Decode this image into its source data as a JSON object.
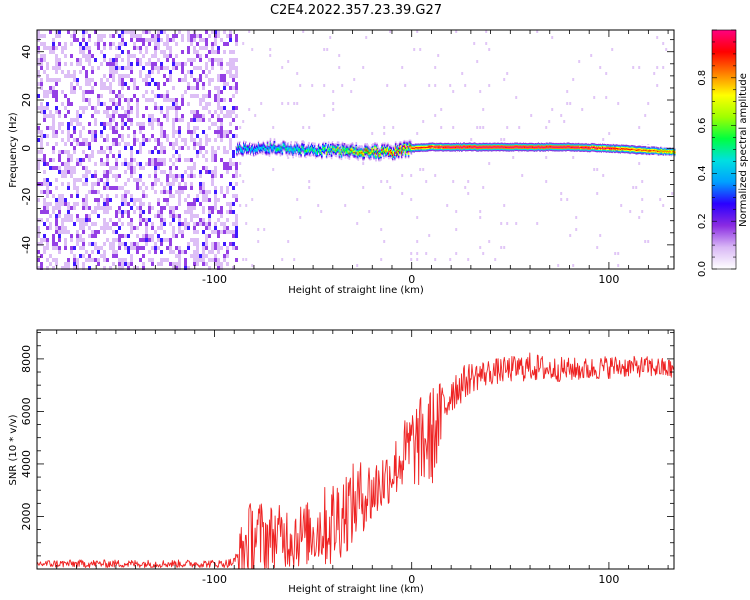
{
  "title": "C2E4.2022.357.23.39.G27",
  "chart_data": [
    {
      "type": "heatmap",
      "xlabel": "Height of straight line (km)",
      "ylabel": "Frequency (Hz)",
      "xlim": [
        -190,
        133
      ],
      "ylim": [
        -50,
        49
      ],
      "xticks": [
        "-100",
        "0",
        "100"
      ],
      "yticks": [
        "40",
        "20",
        "0",
        "-20",
        "-40"
      ],
      "colorbar": {
        "label": "Normalized spectral amplitude",
        "range": [
          0.0,
          1.0
        ],
        "ticks": [
          "0.0",
          "0.2",
          "0.4",
          "0.6",
          "0.8"
        ],
        "colormap": [
          "#ffffff",
          "#d9b8f5",
          "#8a2be2",
          "#2a00ff",
          "#00a0ff",
          "#00e0e0",
          "#00ff40",
          "#a0ff00",
          "#ffff00",
          "#ff8000",
          "#ff0000",
          "#ff0080"
        ]
      },
      "noise_region_x": [
        -190,
        -89
      ],
      "signal_track": {
        "x": [
          -89,
          -80,
          -70,
          -60,
          -50,
          -40,
          -30,
          -20,
          -10,
          0,
          10,
          20,
          40,
          60,
          80,
          100,
          120,
          133
        ],
        "freq_hz": [
          0.0,
          -0.5,
          0.5,
          -0.5,
          -0.5,
          -1.0,
          -1.5,
          -1.5,
          -1.5,
          0.0,
          0.5,
          0.5,
          0.5,
          0.5,
          0.5,
          0.0,
          -1.0,
          -1.5
        ],
        "amplitude": [
          0.45,
          0.45,
          0.5,
          0.5,
          0.55,
          0.65,
          0.75,
          0.8,
          0.85,
          0.9,
          0.95,
          1.0,
          1.0,
          1.0,
          1.0,
          0.95,
          0.85,
          0.8
        ]
      }
    },
    {
      "type": "line",
      "xlabel": "Height of straight line (km)",
      "ylabel": "SNR (10 * v/v)",
      "xlim": [
        -190,
        133
      ],
      "ylim": [
        0,
        9100
      ],
      "xticks": [
        "-100",
        "0",
        "100"
      ],
      "yticks": [
        "8000",
        "6000",
        "4000",
        "2000"
      ],
      "color": "#ee2222",
      "x": [
        -190,
        -170,
        -150,
        -130,
        -110,
        -100,
        -95,
        -90,
        -85,
        -80,
        -75,
        -70,
        -65,
        -60,
        -55,
        -50,
        -45,
        -40,
        -35,
        -30,
        -25,
        -20,
        -15,
        -10,
        -5,
        0,
        5,
        10,
        15,
        20,
        25,
        30,
        40,
        50,
        60,
        70,
        80,
        90,
        100,
        110,
        120,
        133
      ],
      "y": [
        200,
        200,
        200,
        200,
        200,
        200,
        200,
        250,
        800,
        1300,
        1200,
        1250,
        1250,
        1300,
        1300,
        1400,
        1600,
        1700,
        2200,
        2400,
        2800,
        2900,
        3300,
        3700,
        4200,
        4700,
        4800,
        5000,
        5800,
        6800,
        7000,
        7300,
        7500,
        7600,
        7700,
        7600,
        7600,
        7600,
        7700,
        7700,
        7700,
        7600
      ],
      "noise_amplitude": [
        150,
        150,
        150,
        150,
        150,
        150,
        150,
        200,
        1400,
        1500,
        1400,
        1200,
        1200,
        1400,
        1200,
        1300,
        1500,
        1800,
        1700,
        1600,
        1400,
        1300,
        1200,
        1100,
        1300,
        1600,
        1800,
        2000,
        1400,
        900,
        700,
        600,
        500,
        500,
        550,
        500,
        450,
        450,
        450,
        400,
        400,
        400
      ]
    }
  ]
}
